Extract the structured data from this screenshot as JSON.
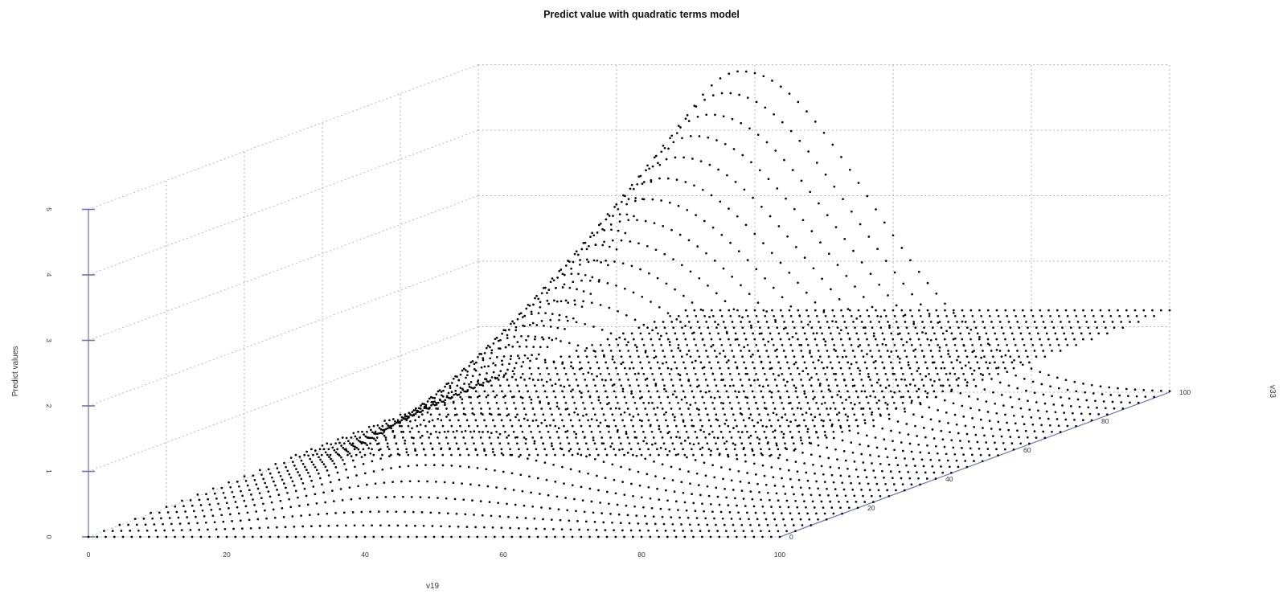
{
  "chart_data": {
    "type": "scatter",
    "title": "Predict value with quadratic terms model",
    "xlabel": "v19",
    "ylabel": "v33",
    "zlabel": "Predict values",
    "x_ticks": [
      "0",
      "20",
      "40",
      "60",
      "80",
      "100"
    ],
    "y_ticks": [
      "0",
      "20",
      "40",
      "60",
      "80",
      "100"
    ],
    "z_ticks": [
      "0",
      "1",
      "2",
      "3",
      "4",
      "5"
    ],
    "xlim": [
      0,
      100
    ],
    "ylim": [
      0,
      100
    ],
    "zlim": [
      0,
      5
    ],
    "grid": true,
    "grid_color": "#aab8cc",
    "point_color": "#000000",
    "surfaces": [
      {
        "description_values": "hump",
        "peak": {
          "v19": 38,
          "v33": 100,
          "predict": 4.9
        },
        "at_v19_0": 0,
        "at_v33_0": 0
      },
      {
        "description_values": "plane",
        "predict": 1.25,
        "v19_range": [
          30,
          100
        ],
        "v33_range": [
          0,
          100
        ]
      }
    ]
  }
}
